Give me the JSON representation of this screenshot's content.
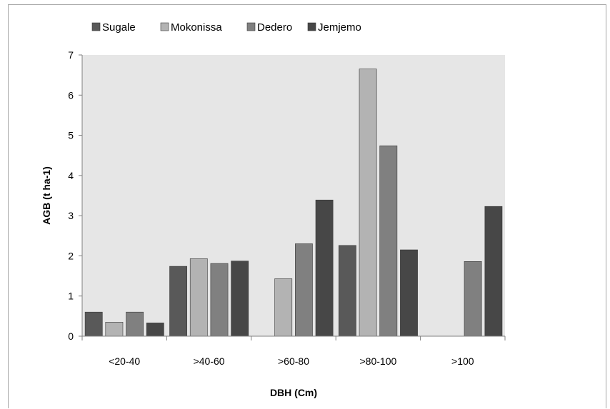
{
  "chart_data": {
    "type": "bar",
    "title": "",
    "xlabel": "DBH (Cm)",
    "ylabel": "AGB (t ha-1)",
    "categories": [
      "<20-40",
      ">40-60",
      ">60-80",
      ">80-100",
      ">100"
    ],
    "ylim": [
      0,
      7
    ],
    "yticks": [
      0,
      1,
      2,
      3,
      4,
      5,
      6,
      7
    ],
    "grid": false,
    "plot_background": "#e6e6e6",
    "legend_position": "top",
    "series": [
      {
        "name": "Sugale",
        "color": "#595959",
        "values": [
          0.6,
          1.74,
          null,
          2.26,
          null
        ]
      },
      {
        "name": "Mokonissa",
        "color": "#b3b3b3",
        "values": [
          0.35,
          1.93,
          1.43,
          6.65,
          null
        ]
      },
      {
        "name": "Dedero",
        "color": "#808080",
        "values": [
          0.6,
          1.81,
          2.3,
          4.74,
          1.86
        ]
      },
      {
        "name": "Jemjemo",
        "color": "#474747",
        "values": [
          0.33,
          1.87,
          3.39,
          2.15,
          3.23
        ]
      }
    ]
  }
}
